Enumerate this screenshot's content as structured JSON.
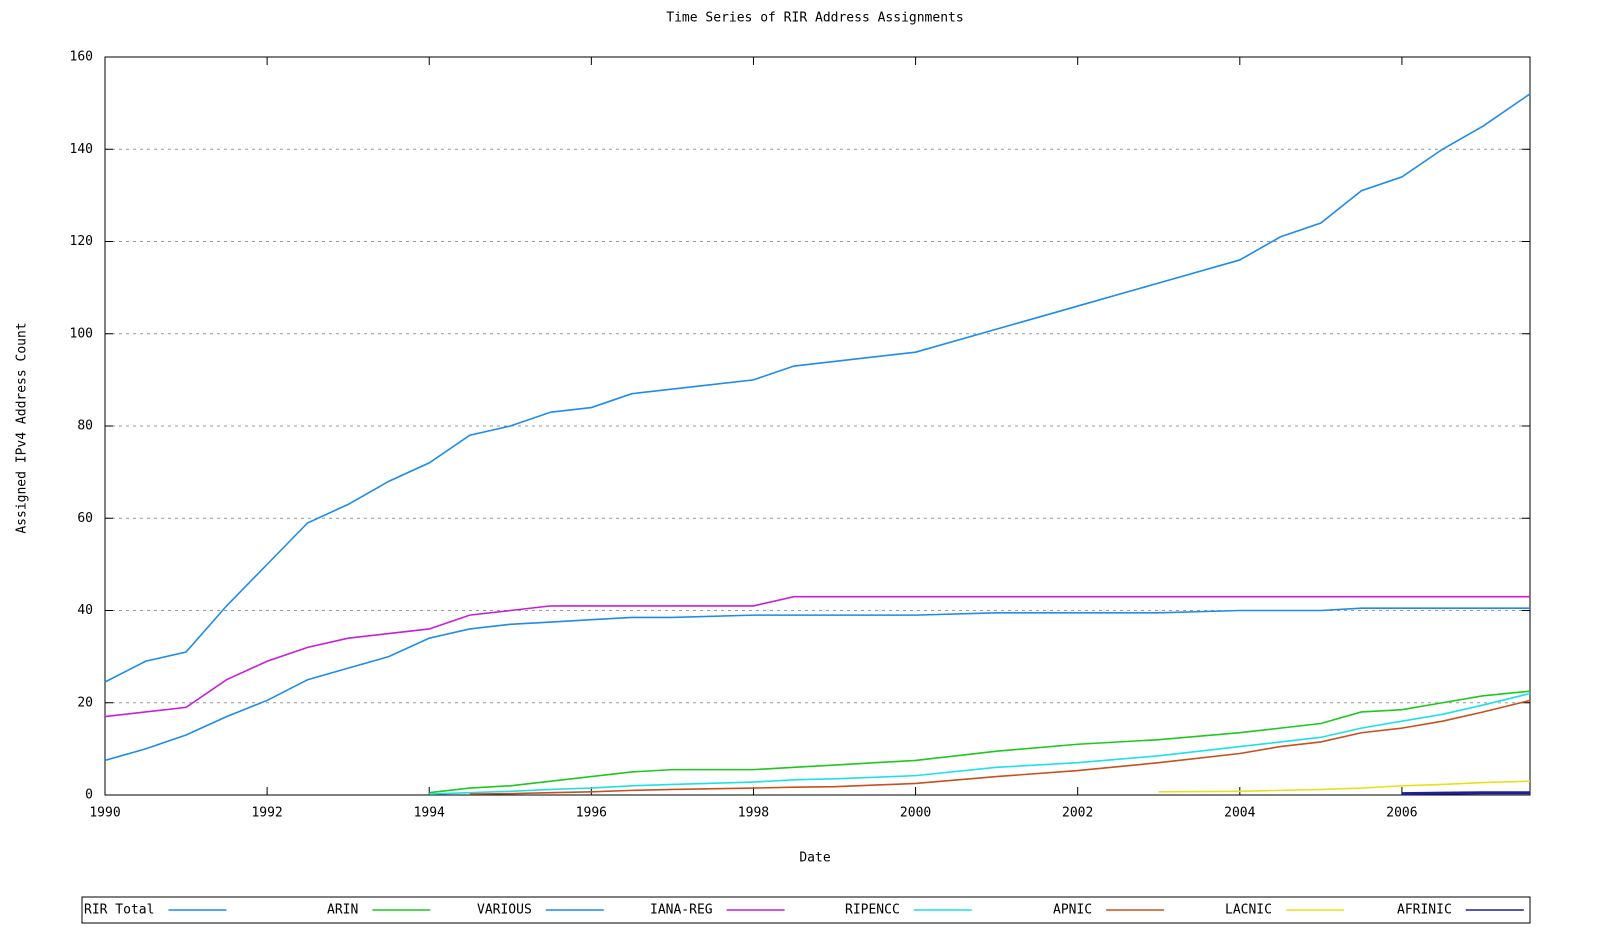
{
  "chart_data": {
    "type": "line",
    "title": "Time Series of RIR Address Assignments",
    "x_label": "Date",
    "y_label": "Assigned IPv4 Address Count",
    "x": [
      1990,
      1990.5,
      1991,
      1991.5,
      1992,
      1992.5,
      1993,
      1993.5,
      1994,
      1994.5,
      1995,
      1995.5,
      1996,
      1996.5,
      1997,
      1998,
      1998.5,
      1999,
      2000,
      2001,
      2002,
      2003,
      2004,
      2004.5,
      2005,
      2005.5,
      2006,
      2006.5,
      2007,
      2007.58
    ],
    "xlim": [
      1990,
      2007.58
    ],
    "xticks": [
      1990,
      1992,
      1994,
      1996,
      1998,
      2000,
      2002,
      2004,
      2006
    ],
    "ylim": [
      0,
      160
    ],
    "yticks": [
      0,
      20,
      40,
      60,
      80,
      100,
      120,
      140,
      160
    ],
    "grid": true,
    "legend": "bottom",
    "series": [
      {
        "name": "RIR Total",
        "color": "#1e8ce8",
        "values": [
          24.5,
          29,
          31,
          41,
          50,
          59,
          63,
          68,
          72,
          78,
          80,
          83,
          84,
          87,
          88,
          90,
          93,
          94,
          96,
          101,
          106,
          111,
          116,
          121,
          124,
          131,
          134,
          140,
          145,
          152
        ]
      },
      {
        "name": "ARIN",
        "color": "#1ec81e",
        "values": [
          null,
          null,
          null,
          null,
          null,
          null,
          null,
          null,
          0.5,
          1.5,
          2,
          3,
          4,
          5,
          5.5,
          5.5,
          6,
          6.5,
          7.5,
          9.5,
          11,
          12,
          13.5,
          14.5,
          15.5,
          18,
          18.5,
          20,
          21.5,
          22.5
        ]
      },
      {
        "name": "VARIOUS",
        "color": "#1e8ce8",
        "values": [
          7.5,
          10,
          13,
          17,
          20.5,
          25,
          27.5,
          30,
          34,
          36,
          37,
          37.5,
          38,
          38.5,
          38.5,
          39,
          39,
          39,
          39,
          39.5,
          39.5,
          39.5,
          40,
          40,
          40,
          40.5,
          40.5,
          40.5,
          40.5,
          40.5
        ]
      },
      {
        "name": "IANA-REG",
        "color": "#c81ed8",
        "values": [
          17,
          18,
          19,
          25,
          29,
          32,
          34,
          35,
          36,
          39,
          40,
          41,
          41,
          41,
          41,
          41,
          43,
          43,
          43,
          43,
          43,
          43,
          43,
          43,
          43,
          43,
          43,
          43,
          43,
          43
        ]
      },
      {
        "name": "RIPENCC",
        "color": "#1ee0e8",
        "values": [
          null,
          null,
          null,
          null,
          null,
          null,
          null,
          null,
          0.2,
          0.5,
          0.8,
          1.2,
          1.5,
          2,
          2.3,
          2.8,
          3.3,
          3.5,
          4.2,
          6,
          7,
          8.5,
          10.5,
          11.5,
          12.5,
          14.5,
          16,
          17.5,
          19.5,
          22
        ]
      },
      {
        "name": "APNIC",
        "color": "#c8501e",
        "values": [
          null,
          null,
          null,
          null,
          null,
          null,
          null,
          null,
          null,
          0.2,
          0.3,
          0.5,
          0.7,
          1,
          1.2,
          1.5,
          1.7,
          1.8,
          2.5,
          4,
          5.3,
          7,
          9,
          10.5,
          11.5,
          13.5,
          14.5,
          16,
          18,
          20.5
        ]
      },
      {
        "name": "LACNIC",
        "color": "#e8e01e",
        "values": [
          null,
          null,
          null,
          null,
          null,
          null,
          null,
          null,
          null,
          null,
          null,
          null,
          null,
          null,
          null,
          null,
          null,
          null,
          null,
          null,
          null,
          0.7,
          0.8,
          1,
          1.2,
          1.5,
          2,
          2.3,
          2.7,
          3
        ]
      },
      {
        "name": "AFRINIC",
        "color": "#1e1e9c",
        "values": [
          null,
          null,
          null,
          null,
          null,
          null,
          null,
          null,
          null,
          null,
          null,
          null,
          null,
          null,
          null,
          null,
          null,
          null,
          null,
          null,
          null,
          null,
          null,
          null,
          null,
          null,
          0.3,
          0.4,
          0.5,
          0.5
        ]
      }
    ]
  }
}
